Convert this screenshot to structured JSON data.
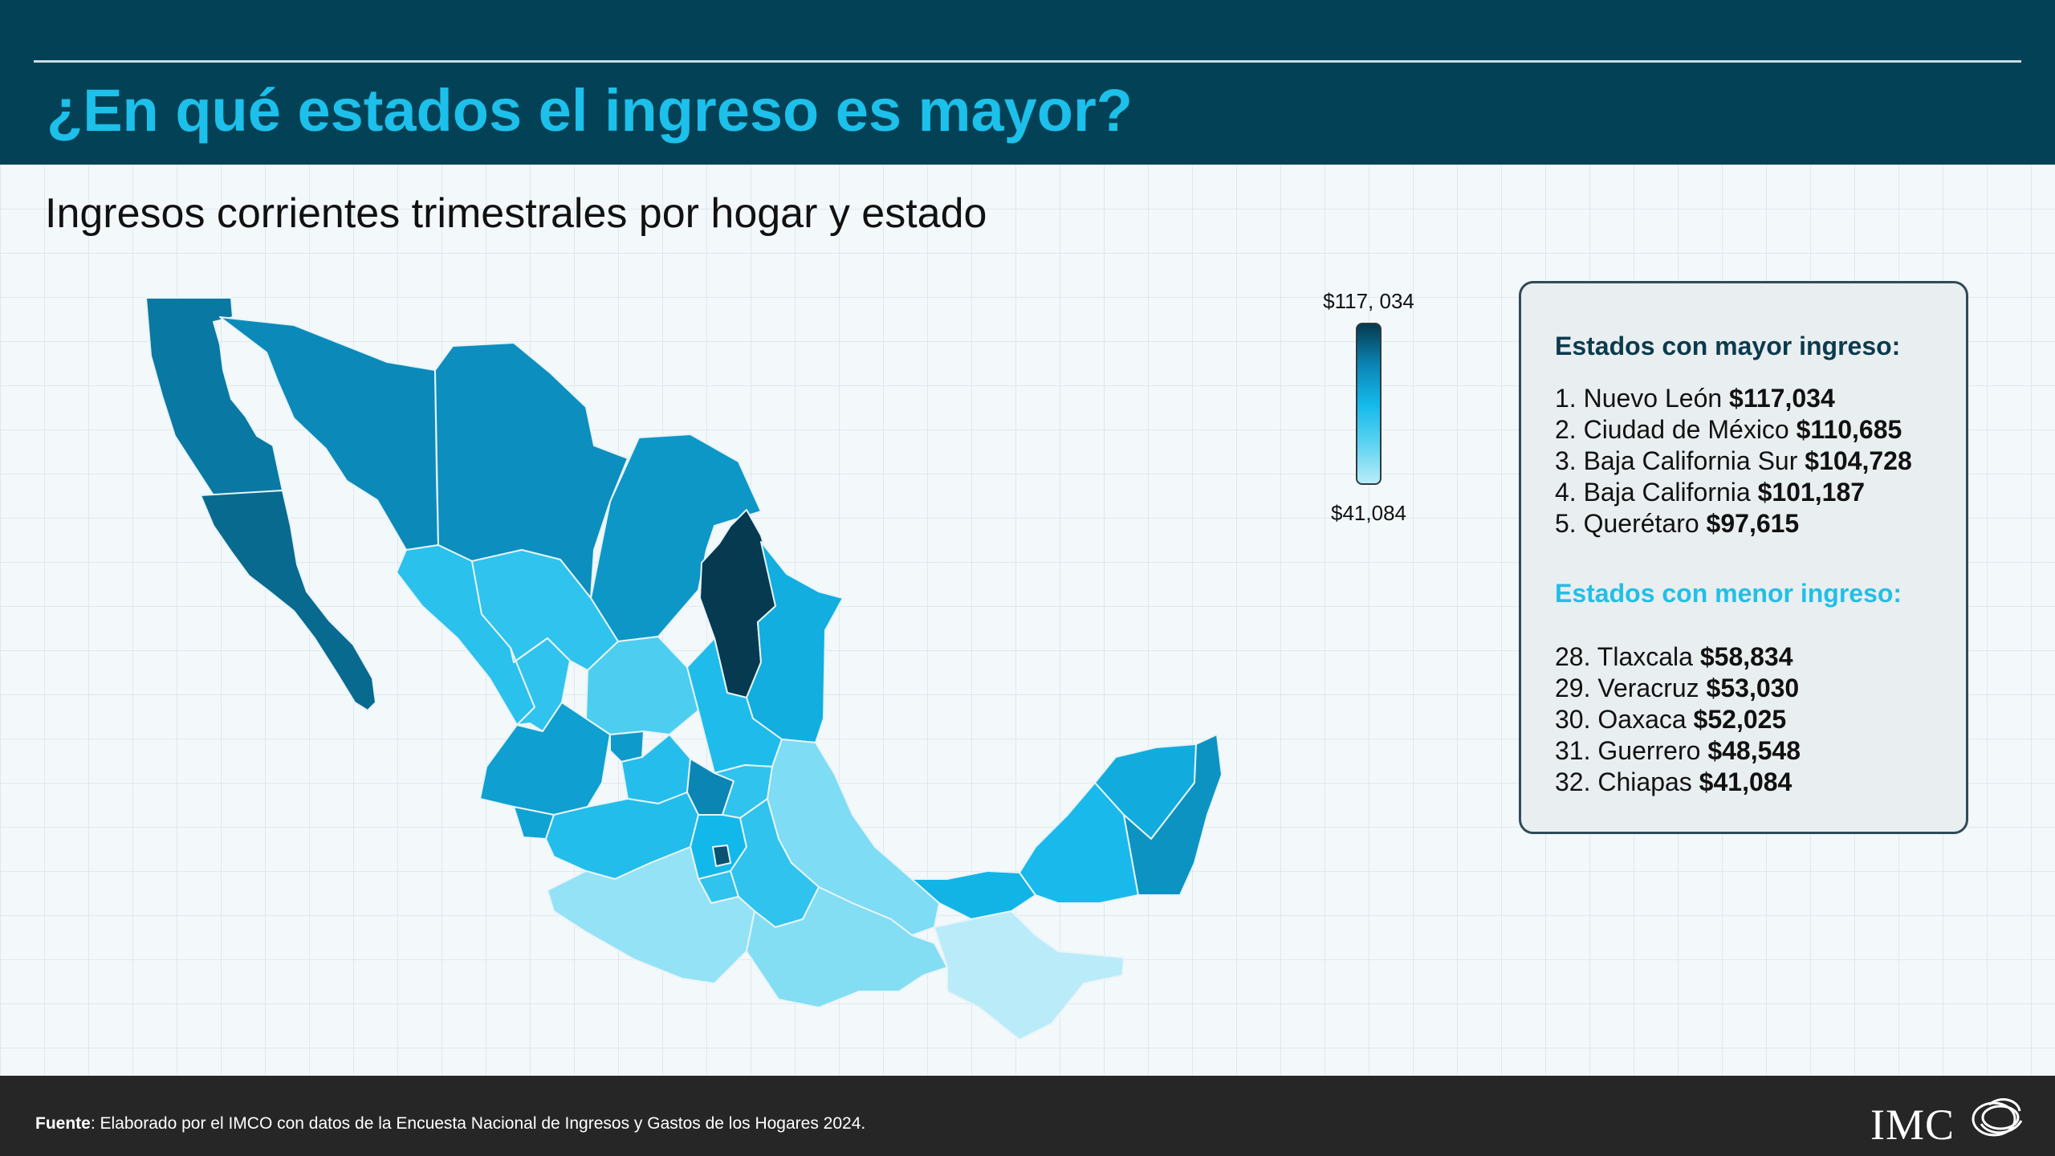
{
  "header": {
    "title": "¿En qué estados el ingreso es mayor?"
  },
  "subtitle": "Ingresos corrientes trimestrales por hogar y estado",
  "legend": {
    "max_label": "$117, 034",
    "min_label": "$41,084"
  },
  "ranking": {
    "top_heading": "Estados con mayor ingreso:",
    "top": [
      {
        "prefix": "1. Nuevo León ",
        "value": "$117,034"
      },
      {
        "prefix": "2. Ciudad de México  ",
        "value": "$110,685"
      },
      {
        "prefix": "3. Baja California Sur ",
        "value": "$104,728"
      },
      {
        "prefix": "4. Baja California ",
        "value": "$101,187"
      },
      {
        "prefix": "5. Querétaro  ",
        "value": "$97,615"
      }
    ],
    "bottom_heading": "Estados con menor ingreso:",
    "bottom": [
      {
        "prefix": "28. Tlaxcala  ",
        "value": "$58,834"
      },
      {
        "prefix": "29. Veracruz  ",
        "value": "$53,030"
      },
      {
        "prefix": "30. Oaxaca ",
        "value": "$52,025"
      },
      {
        "prefix": "31. Guerrero ",
        "value": "$48,548"
      },
      {
        "prefix": "32. Chiapas ",
        "value": "$41,084"
      }
    ]
  },
  "footer": {
    "source_label": "Fuente",
    "source_text": ": Elaborado por el IMCO con datos de la Encuesta Nacional de Ingresos y Gastos de los Hogares 2024.",
    "logo_text": "IMC"
  },
  "colors": {
    "header_bg": "#034256",
    "title": "#1cc0ea",
    "scale_max": "#063a50",
    "scale_mid": "#13b8ea",
    "scale_min": "#b9ecf8"
  },
  "chart_data": {
    "type": "choropleth",
    "scale": {
      "min": 41084,
      "max": 117034
    },
    "regions": [
      {
        "name": "Nuevo León",
        "value": 117034
      },
      {
        "name": "Ciudad de México",
        "value": 110685
      },
      {
        "name": "Baja California Sur",
        "value": 104728
      },
      {
        "name": "Baja California",
        "value": 101187
      },
      {
        "name": "Querétaro",
        "value": 97615
      },
      {
        "name": "Tlaxcala",
        "value": 58834
      },
      {
        "name": "Veracruz",
        "value": 53030
      },
      {
        "name": "Oaxaca",
        "value": 52025
      },
      {
        "name": "Guerrero",
        "value": 48548
      },
      {
        "name": "Chiapas",
        "value": 41084
      }
    ]
  }
}
